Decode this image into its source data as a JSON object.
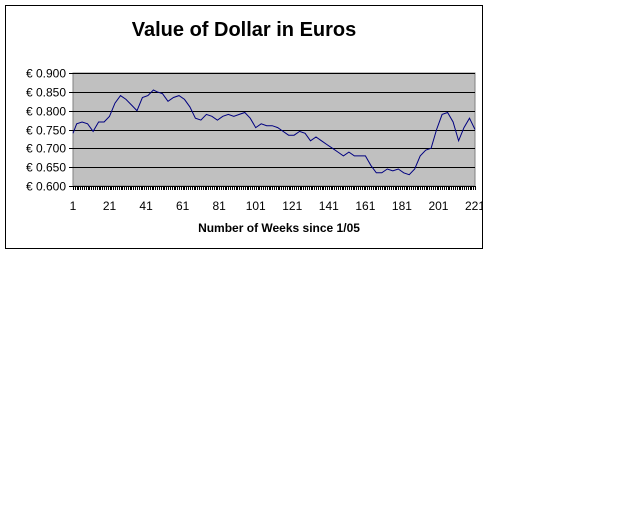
{
  "chart_data": {
    "type": "line",
    "title": "Value of Dollar in Euros",
    "xlabel": "Number of Weeks since 1/05",
    "ylabel": "",
    "ylim": [
      0.6,
      0.9
    ],
    "xlim": [
      1,
      221
    ],
    "y_ticks": [
      0.9,
      0.85,
      0.8,
      0.75,
      0.7,
      0.65,
      0.6
    ],
    "y_tick_labels": [
      "€ 0.900",
      "€ 0.850",
      "€ 0.800",
      "€ 0.750",
      "€ 0.700",
      "€ 0.650",
      "€ 0.600"
    ],
    "x_ticks": [
      1,
      21,
      41,
      61,
      81,
      101,
      121,
      141,
      161,
      181,
      201,
      221
    ],
    "x_tick_labels": [
      "1",
      "21",
      "41",
      "61",
      "81",
      "101",
      "121",
      "141",
      "161",
      "181",
      "201",
      "221"
    ],
    "grid": true,
    "legend": "none",
    "colors": {
      "plot_background": "#c0c0c0",
      "line": "#000080",
      "gridline": "#000000"
    },
    "series": [
      {
        "x": [
          1,
          3,
          6,
          9,
          12,
          15,
          18,
          21,
          24,
          27,
          30,
          33,
          36,
          39,
          42,
          45,
          47,
          50,
          53,
          56,
          59,
          62,
          65,
          68,
          71,
          74,
          77,
          80,
          83,
          86,
          89,
          92,
          95,
          98,
          101,
          104,
          107,
          110,
          113,
          116,
          119,
          122,
          125,
          128,
          131,
          134,
          137,
          140,
          143,
          146,
          149,
          152,
          155,
          158,
          161,
          164,
          167,
          170,
          173,
          176,
          179,
          182,
          185,
          188,
          191,
          194,
          197,
          200,
          203,
          206,
          209,
          212,
          215,
          218,
          221
        ],
        "y": [
          0.74,
          0.765,
          0.77,
          0.765,
          0.745,
          0.77,
          0.77,
          0.785,
          0.82,
          0.84,
          0.83,
          0.815,
          0.8,
          0.835,
          0.84,
          0.855,
          0.85,
          0.845,
          0.825,
          0.835,
          0.84,
          0.83,
          0.81,
          0.78,
          0.775,
          0.79,
          0.785,
          0.775,
          0.785,
          0.79,
          0.785,
          0.79,
          0.795,
          0.78,
          0.755,
          0.765,
          0.76,
          0.76,
          0.755,
          0.745,
          0.735,
          0.735,
          0.745,
          0.74,
          0.72,
          0.73,
          0.72,
          0.71,
          0.7,
          0.69,
          0.68,
          0.69,
          0.68,
          0.68,
          0.68,
          0.655,
          0.635,
          0.635,
          0.645,
          0.64,
          0.645,
          0.635,
          0.63,
          0.645,
          0.68,
          0.695,
          0.7,
          0.75,
          0.79,
          0.795,
          0.77,
          0.72,
          0.755,
          0.78,
          0.75
        ]
      }
    ]
  }
}
